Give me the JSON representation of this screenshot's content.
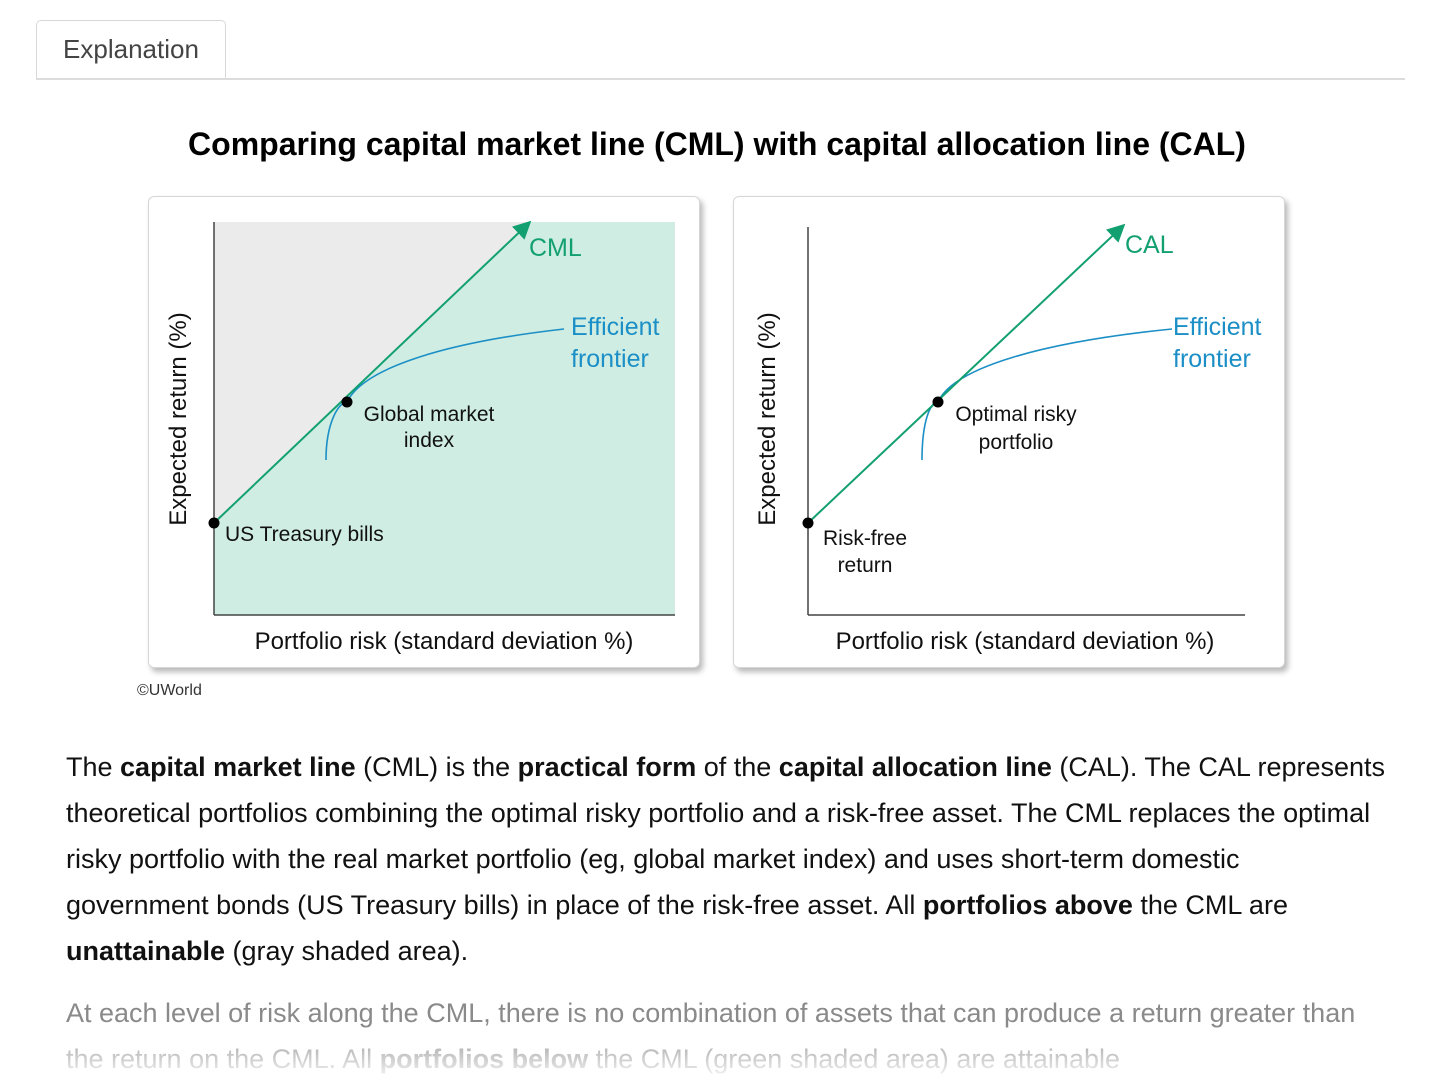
{
  "tabs": [
    {
      "label": "Explanation"
    }
  ],
  "figure": {
    "title": "Comparing capital market line (CML) with capital allocation line (CAL)",
    "copyright": "©UWorld"
  },
  "colors": {
    "line": "#13a070",
    "frontier": "#1b8fc6",
    "green_shade": "#cfede3",
    "gray_shade": "#ebebeb"
  },
  "chart_data": [
    {
      "type": "line",
      "ylabel": "Expected return (%)",
      "xlabel": "Portfolio risk (standard deviation %)",
      "shaded_above_line": "gray",
      "shaded_below_line": "green",
      "line_label": "CML",
      "curve_label": [
        "Efficient",
        "frontier"
      ],
      "tangent_point_label": [
        "Global market",
        "index"
      ],
      "intercept_label": [
        "US Treasury bills"
      ]
    },
    {
      "type": "line",
      "ylabel": "Expected return (%)",
      "xlabel": "Portfolio risk (standard deviation %)",
      "line_label": "CAL",
      "curve_label": [
        "Efficient",
        "frontier"
      ],
      "tangent_point_label": [
        "Optimal risky",
        "portfolio"
      ],
      "intercept_label": [
        "Risk-free",
        "return"
      ]
    }
  ],
  "explanation": {
    "paragraph1": [
      {
        "t": "The ",
        "b": false
      },
      {
        "t": "capital market line",
        "b": true
      },
      {
        "t": " (CML) is the ",
        "b": false
      },
      {
        "t": "practical form",
        "b": true
      },
      {
        "t": " of the ",
        "b": false
      },
      {
        "t": "capital allocation line",
        "b": true
      },
      {
        "t": " (CAL). The CAL represents theoretical portfolios combining the optimal risky portfolio and a risk-free asset. The CML replaces the optimal risky portfolio with the real market portfolio (eg, global market index) and uses short-term domestic government bonds (US Treasury bills) in place of the risk-free asset. All ",
        "b": false
      },
      {
        "t": "portfolios above",
        "b": true
      },
      {
        "t": " the CML are ",
        "b": false
      },
      {
        "t": "unattainable",
        "b": true
      },
      {
        "t": " (gray shaded area).",
        "b": false
      }
    ],
    "paragraph2": [
      {
        "t": "At each level of risk along the CML, there is no combination of assets that can produce a return greater than the return on the CML. All ",
        "b": false
      },
      {
        "t": "portfolios below",
        "b": true
      },
      {
        "t": " the CML (green shaded area) are attainable",
        "b": false
      }
    ]
  }
}
